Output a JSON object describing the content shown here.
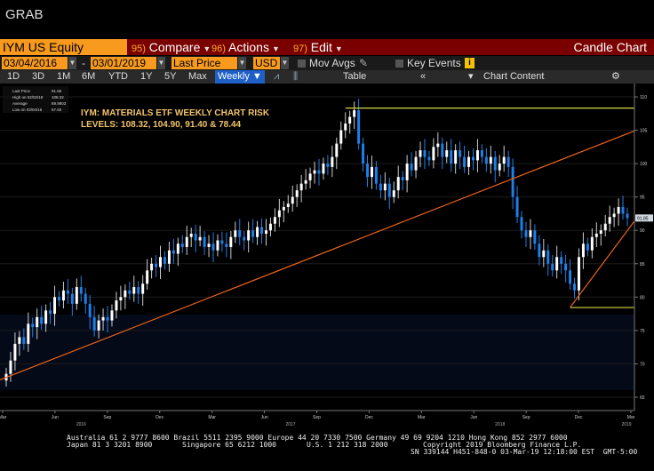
{
  "window": {
    "title": "GRAB"
  },
  "header": {
    "security": "IYM US Equity",
    "functions": [
      {
        "num": "95)",
        "label": "Compare"
      },
      {
        "num": "96)",
        "label": "Actions"
      },
      {
        "num": "97)",
        "label": "Edit"
      }
    ],
    "chart_type": "Candle Chart"
  },
  "controls": {
    "start_date": "03/04/2016",
    "separator": "-",
    "end_date": "03/01/2019",
    "price_field": "Last Price",
    "currency": "USD",
    "mov_avgs": "Mov Avgs",
    "key_events": "Key Events"
  },
  "toolbar": {
    "periods": [
      "1D",
      "3D",
      "1M",
      "6M",
      "YTD",
      "1Y",
      "5Y",
      "Max"
    ],
    "frequency": "Weekly",
    "table": "Table",
    "chart_content": "Chart Content"
  },
  "legend": {
    "rows": [
      [
        "Last Price",
        "91.85"
      ],
      [
        "High on 02/02/18",
        "108.32"
      ],
      [
        "Average",
        "89.9903"
      ],
      [
        "Low on 03/04/16",
        "67.60"
      ]
    ]
  },
  "annotation": {
    "line1": "IYM: MATERIALS ETF WEEKLY CHART RISK",
    "line2": "LEVELS: 108.32, 104.90, 91.40 & 78.44"
  },
  "colors": {
    "orange": "#f79a1e",
    "trendline": "#e8621a",
    "level_line": "#d8d840",
    "up_candle": "#ffffff",
    "down_candle": "#1e7fe8",
    "price_tag": "#cfd8e0"
  },
  "chart_data": {
    "type": "candlestick",
    "y_ticks": [
      110,
      105,
      100,
      95,
      90,
      85,
      80,
      75,
      70,
      65
    ],
    "ylim": [
      63,
      112
    ],
    "last_price_tag": "91.85",
    "x_month_labels": [
      "Mar",
      "Jun",
      "Sep",
      "Dec",
      "Mar",
      "Jun",
      "Sep",
      "Dec",
      "Mar",
      "Jun",
      "Sep",
      "Dec",
      "Mar"
    ],
    "x_year_labels": [
      "2016",
      "2017",
      "2018",
      "2019"
    ],
    "weekly_close": [
      68.5,
      70.5,
      73,
      74,
      73,
      76,
      75.5,
      77,
      76,
      78,
      77.5,
      80,
      79.5,
      81,
      80.5,
      79,
      81.5,
      80.5,
      79,
      77,
      75,
      76.5,
      77,
      76.5,
      78,
      79.5,
      80,
      81,
      80.5,
      81.5,
      80.5,
      82,
      84,
      85,
      84.5,
      86,
      85,
      87,
      86.5,
      88,
      87.5,
      89,
      89.5,
      88.5,
      89,
      87.5,
      88,
      87,
      88.5,
      88,
      87.5,
      89,
      90,
      89,
      88.5,
      90,
      89,
      90.5,
      89.5,
      90,
      91,
      92,
      93,
      93.5,
      94,
      95,
      96,
      97,
      97.5,
      98.5,
      99,
      98.5,
      100,
      99.5,
      101,
      103,
      105,
      106,
      107,
      108,
      103,
      100,
      98,
      99.5,
      97,
      96,
      97,
      95,
      96,
      98,
      97.5,
      100,
      99,
      101,
      102,
      101,
      100.5,
      102.5,
      103,
      101,
      102,
      100,
      102,
      101,
      99.5,
      101,
      100.5,
      102,
      101,
      100,
      101,
      99,
      100,
      101,
      99.5,
      95,
      92,
      90,
      89,
      90,
      88,
      86,
      87,
      85,
      84,
      86,
      85,
      84,
      82,
      81,
      86,
      88,
      87,
      89,
      89.5,
      90,
      91,
      92,
      92.5,
      93.5,
      92.5,
      91.85
    ],
    "levels": [
      108.32,
      104.9,
      91.4,
      78.44
    ],
    "high": {
      "date": "02/02/18",
      "value": 108.32
    },
    "low": {
      "date": "03/04/16",
      "value": 67.6
    },
    "average": 89.9903
  },
  "footer": {
    "line1": "Australia 61 2 9777 8600 Brazil 5511 2395 9000 Europe 44 20 7330 7500 Germany 49 69 9204 1210 Hong Kong 852 2977 6000",
    "line2a": "Japan 81 3 3201 8900",
    "line2b": "Singapore 65 6212 1000",
    "line2c": "U.S. 1 212 318 2000",
    "line2d": "Copyright 2019 Bloomberg Finance L.P.",
    "line3": "SN 339144 H451-848-0 03-Mar-19 12:18:00 EST  GMT-5:00"
  }
}
